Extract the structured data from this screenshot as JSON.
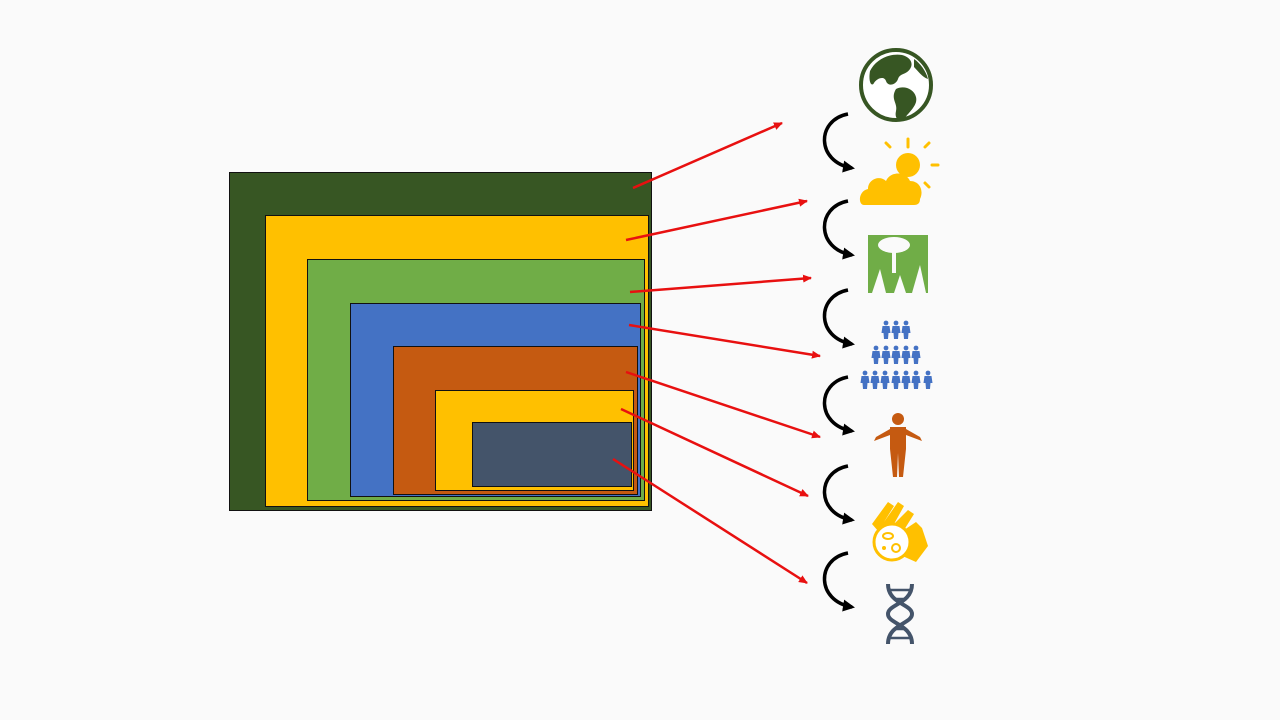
{
  "diagram": {
    "levels": [
      {
        "id": "planet",
        "icon": "globe-icon",
        "color": "#375623"
      },
      {
        "id": "climate",
        "icon": "sun-behind-cloud-icon",
        "color": "#FFC000"
      },
      {
        "id": "ecosystem",
        "icon": "forest-icon",
        "color": "#70AD47"
      },
      {
        "id": "population",
        "icon": "people-group-icon",
        "color": "#4472C4"
      },
      {
        "id": "individual",
        "icon": "person-icon",
        "color": "#C55A11"
      },
      {
        "id": "microbes",
        "icon": "hand-bacteria-icon",
        "color": "#FFC000"
      },
      {
        "id": "genes",
        "icon": "dna-icon",
        "color": "#44546A"
      }
    ],
    "arrow_color": "#E81010",
    "link_arrow_color": "#000000"
  }
}
